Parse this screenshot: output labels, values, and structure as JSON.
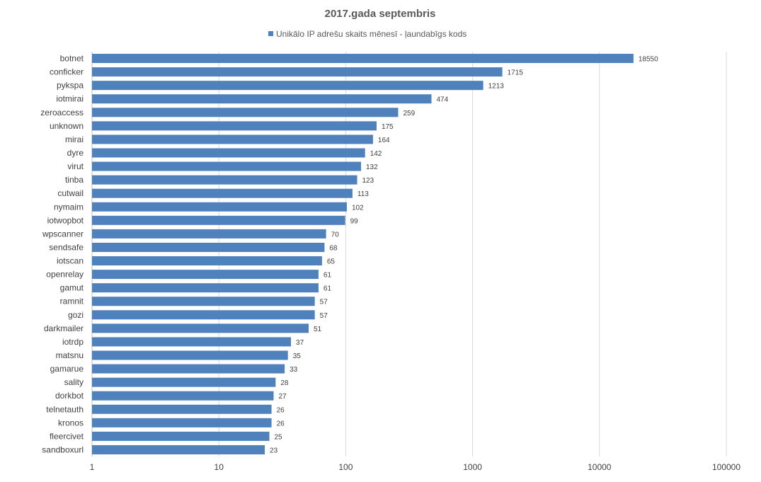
{
  "chart_data": {
    "type": "bar",
    "orientation": "horizontal",
    "title": "2017.gada septembris",
    "legend": {
      "position": "top",
      "entries": [
        "Unikālo IP adrešu skaits mēnesī -  ļaundabīgs kods"
      ]
    },
    "x_scale": "log",
    "xlim": [
      1,
      100000
    ],
    "x_ticks": [
      "1",
      "10",
      "100",
      "1000",
      "10000",
      "100000"
    ],
    "x_tick_values": [
      1,
      10,
      100,
      1000,
      10000,
      100000
    ],
    "grid": true,
    "colors": {
      "bar": "#4f81bd"
    },
    "categories": [
      "botnet",
      "conficker",
      "pykspa",
      "iotmirai",
      "zeroaccess",
      "unknown",
      "mirai",
      "dyre",
      "virut",
      "tinba",
      "cutwail",
      "nymaim",
      "iotwopbot",
      "wpscanner",
      "sendsafe",
      "iotscan",
      "openrelay",
      "gamut",
      "ramnit",
      "gozi",
      "darkmailer",
      "iotrdp",
      "matsnu",
      "gamarue",
      "sality",
      "dorkbot",
      "telnetauth",
      "kronos",
      "fleercivet",
      "sandboxurl"
    ],
    "series": [
      {
        "name": "Unikālo IP adrešu skaits mēnesī -  ļaundabīgs kods",
        "values": [
          18550,
          1715,
          1213,
          474,
          259,
          175,
          164,
          142,
          132,
          123,
          113,
          102,
          99,
          70,
          68,
          65,
          61,
          61,
          57,
          57,
          51,
          37,
          35,
          33,
          28,
          27,
          26,
          26,
          25,
          23
        ]
      }
    ]
  }
}
